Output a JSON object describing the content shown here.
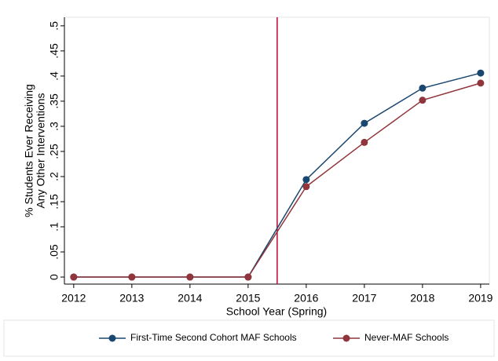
{
  "chart_data": {
    "type": "line",
    "y_label_lines": [
      "% Students Ever Receiving",
      "Any Other Interventions"
    ],
    "x_label": "School Year (Spring)",
    "x": [
      2012,
      2013,
      2014,
      2015,
      2016,
      2017,
      2018,
      2019
    ],
    "series": [
      {
        "name": "First-Time Second Cohort MAF Schools",
        "color": "#1a476f",
        "values": [
          0,
          0,
          0,
          0,
          0.194,
          0.306,
          0.376,
          0.406
        ]
      },
      {
        "name": "Never-MAF Schools",
        "color": "#90353b",
        "values": [
          0,
          0,
          0,
          0,
          0.18,
          0.268,
          0.352,
          0.386
        ]
      }
    ],
    "reference_line": {
      "x": 2015.5,
      "color": "#c10534"
    },
    "xlim": [
      2011.84,
      2019.15
    ],
    "ylim": [
      -0.014,
      0.517
    ],
    "xticks": [
      2012,
      2013,
      2014,
      2015,
      2016,
      2017,
      2018,
      2019
    ],
    "yticks": [
      0,
      {
        "value": 0.05,
        "label": ".05"
      },
      {
        "value": 0.1,
        "label": ".1"
      },
      {
        "value": 0.15,
        "label": ".15"
      },
      {
        "value": 0.2,
        "label": ".2"
      },
      {
        "value": 0.25,
        "label": ".25"
      },
      {
        "value": 0.3,
        "label": ".3"
      },
      {
        "value": 0.35,
        "label": ".35"
      },
      {
        "value": 0.4,
        "label": ".4"
      },
      {
        "value": 0.45,
        "label": ".45"
      },
      {
        "value": 0.5,
        "label": ".5"
      }
    ],
    "grid": false,
    "legend": "bottom"
  }
}
